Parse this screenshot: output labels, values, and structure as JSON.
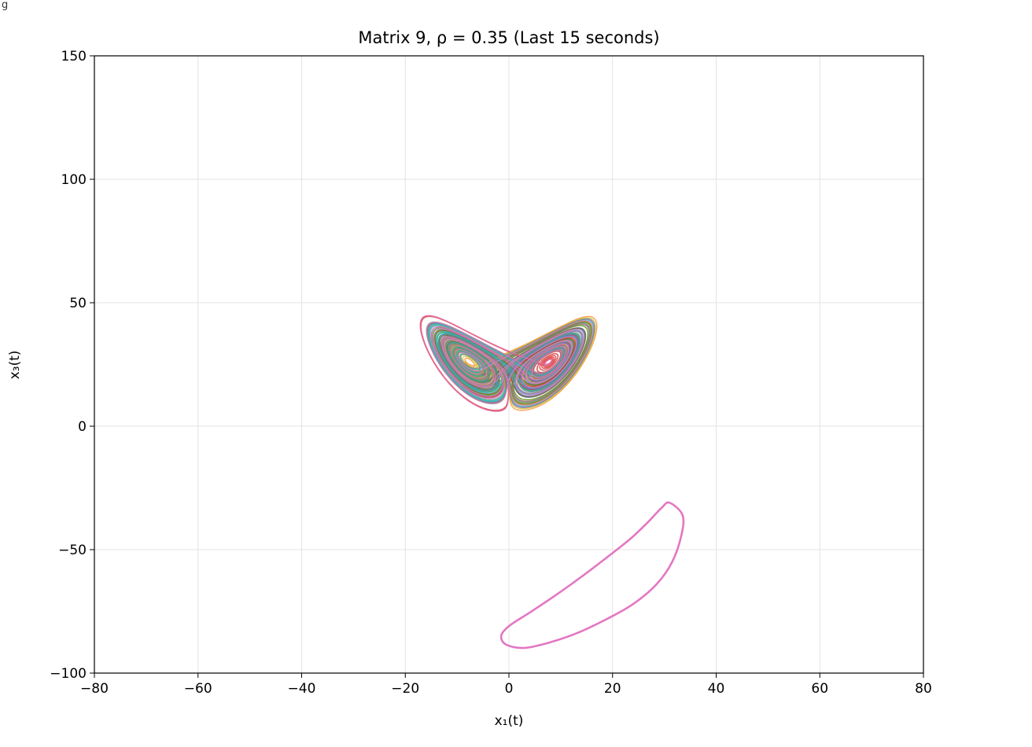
{
  "window": {
    "corner_label": "g"
  },
  "chart_data": {
    "type": "line",
    "title": "Matrix 9, ρ = 0.35 (Last 15 seconds)",
    "xlabel": "x₁(t)",
    "ylabel": "x₃(t)",
    "xlim": [
      -80,
      80
    ],
    "ylim": [
      -100,
      150
    ],
    "xticks": [
      -80,
      -60,
      -40,
      -20,
      0,
      20,
      40,
      60,
      80
    ],
    "xtick_labels": [
      "−80",
      "−60",
      "−40",
      "−20",
      "0",
      "20",
      "40",
      "60",
      "80"
    ],
    "yticks": [
      -100,
      -50,
      0,
      50,
      100,
      150
    ],
    "ytick_labels": [
      "−100",
      "−50",
      "0",
      "50",
      "100",
      "150"
    ],
    "grid": true,
    "legend": false,
    "attractor": {
      "description_kind": "lorenz-butterfly",
      "left_lobe_center": [
        -8,
        27
      ],
      "right_lobe_center": [
        8,
        27
      ],
      "x_extent": [
        -18,
        18
      ],
      "y_extent": [
        5,
        45
      ],
      "series_colors": [
        "#1f77b4",
        "#ff7f0e",
        "#2ca02c",
        "#d62728",
        "#9467bd",
        "#8c564b",
        "#bcbd22",
        "#17becf",
        "#7f7f7f",
        "#e377c2"
      ]
    },
    "series": [
      {
        "color": "#e377c2",
        "x": [
          31,
          33.5,
          33.3,
          31.5,
          28.5,
          24,
          19,
          13.5,
          8,
          3,
          -0.5,
          -1.5,
          0,
          4,
          9,
          14,
          19,
          23.5,
          27,
          29.5,
          31
        ],
        "y": [
          -31,
          -36,
          -44,
          -55,
          -64,
          -72,
          -78,
          -83.5,
          -87.5,
          -89.8,
          -88.5,
          -85,
          -81,
          -75.5,
          -68.5,
          -61,
          -53,
          -45.5,
          -38.5,
          -33,
          -31
        ]
      }
    ]
  }
}
